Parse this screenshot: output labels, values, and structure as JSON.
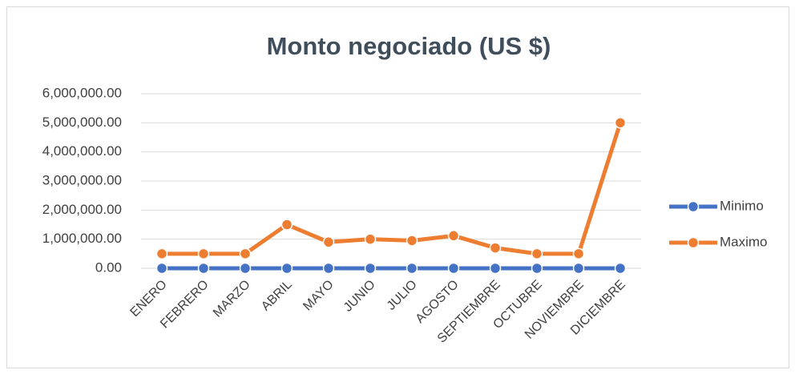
{
  "chart_data": {
    "type": "line",
    "title": "Monto negociado (US $)",
    "categories": [
      "ENERO",
      "FEBRERO",
      "MARZO",
      "ABRIL",
      "MAYO",
      "JUNIO",
      "JULIO",
      "AGOSTO",
      "SEPTIEMBRE",
      "OCTUBRE",
      "NOVIEMBRE",
      "DICIEMBRE"
    ],
    "series": [
      {
        "name": "Minimo",
        "color": "#4472c4",
        "values": [
          0,
          0,
          0,
          0,
          0,
          0,
          0,
          0,
          0,
          0,
          0,
          0
        ]
      },
      {
        "name": "Maximo",
        "color": "#ed7d31",
        "values": [
          500000,
          500000,
          500000,
          1500000,
          900000,
          1000000,
          950000,
          1120000,
          700000,
          500000,
          500000,
          5000000
        ]
      }
    ],
    "ylim": [
      0,
      6000000
    ],
    "yticks": [
      {
        "value": 0,
        "label": "0.00"
      },
      {
        "value": 1000000,
        "label": "1,000,000.00"
      },
      {
        "value": 2000000,
        "label": "2,000,000.00"
      },
      {
        "value": 3000000,
        "label": "3,000,000.00"
      },
      {
        "value": 4000000,
        "label": "4,000,000.00"
      },
      {
        "value": 5000000,
        "label": "5,000,000.00"
      },
      {
        "value": 6000000,
        "label": "6,000,000.00"
      }
    ],
    "grid": true,
    "legend": "right"
  }
}
